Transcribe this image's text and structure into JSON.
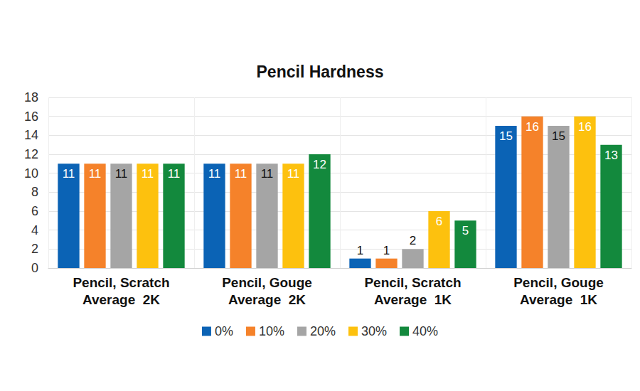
{
  "chart_data": {
    "type": "bar",
    "title": "Pencil Hardness",
    "categories": [
      "Pencil, Scratch\nAverage  2K",
      "Pencil, Gouge\nAverage  2K",
      "Pencil, Scratch\nAverage  1K",
      "Pencil, Gouge\nAverage  1K"
    ],
    "series": [
      {
        "name": "0%",
        "color": "#0b63b5",
        "values": [
          11,
          11,
          1,
          15
        ]
      },
      {
        "name": "10%",
        "color": "#f5822a",
        "values": [
          11,
          11,
          1,
          16
        ]
      },
      {
        "name": "20%",
        "color": "#a5a5a5",
        "values": [
          11,
          11,
          2,
          15
        ]
      },
      {
        "name": "30%",
        "color": "#fdc10e",
        "values": [
          11,
          11,
          6,
          16
        ]
      },
      {
        "name": "40%",
        "color": "#13893d",
        "values": [
          11,
          12,
          5,
          13
        ]
      }
    ],
    "ylim": [
      0,
      18
    ],
    "yticks": [
      0,
      2,
      4,
      6,
      8,
      10,
      12,
      14,
      16,
      18
    ],
    "grid": true,
    "legend": "bottom",
    "data_labels": true
  }
}
